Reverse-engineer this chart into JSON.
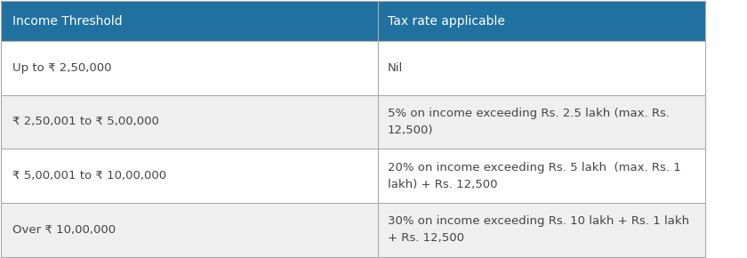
{
  "header": [
    "Income Threshold",
    "Tax rate applicable"
  ],
  "rows": [
    [
      "Up to ₹ 2,50,000",
      "Nil"
    ],
    [
      "₹ 2,50,001 to ₹ 5,00,000",
      "5% on income exceeding Rs. 2.5 lakh (max. Rs.\n12,500)"
    ],
    [
      "₹ 5,00,001 to ₹ 10,00,000",
      "20% on income exceeding Rs. 5 lakh  (max. Rs. 1\nlakh) + Rs. 12,500"
    ],
    [
      "Over ₹ 10,00,000",
      "30% on income exceeding Rs. 10 lakh + Rs. 1 lakh\n+ Rs. 12,500"
    ]
  ],
  "col_split": 0.535,
  "header_bg": "#2171a0",
  "header_fg": "#ffffff",
  "row_bg_even": "#efefef",
  "row_bg_odd": "#ffffff",
  "border_color": "#aaaaaa",
  "text_color": "#444444",
  "header_fontsize": 10,
  "cell_fontsize": 9.5,
  "fig_width": 8.4,
  "fig_height": 2.9,
  "dpi": 100
}
